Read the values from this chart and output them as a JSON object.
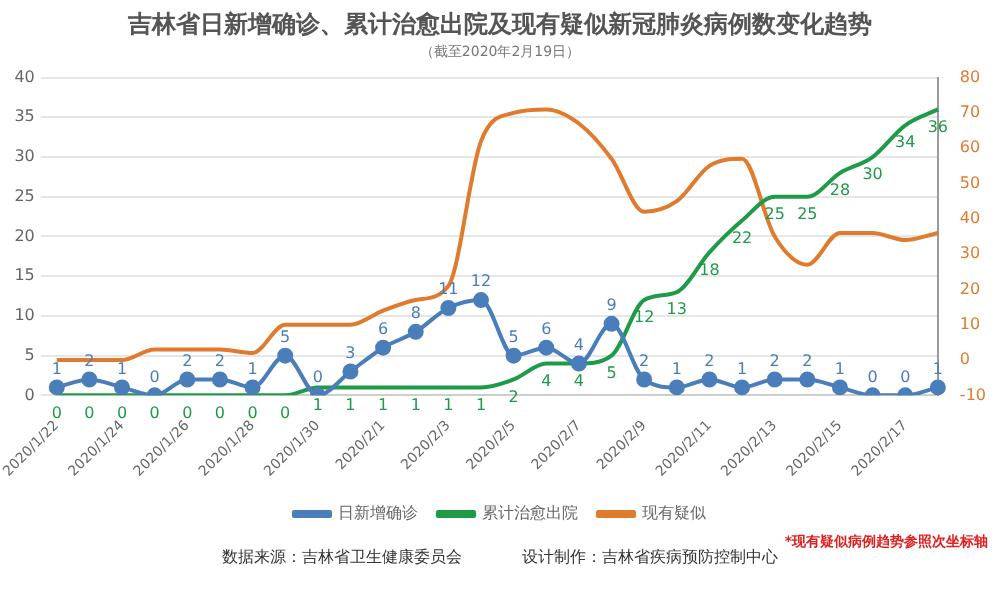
{
  "chart_data": {
    "type": "line",
    "title": "吉林省日新增确诊、累计治愈出院及现有疑似新冠肺炎病例数变化趋势",
    "subtitle": "（截至2020年2月19日）",
    "categories": [
      "2020/1/22",
      null,
      "2020/1/24",
      null,
      "2020/1/26",
      null,
      "2020/1/28",
      null,
      "2020/1/30",
      null,
      "2020/2/1",
      null,
      "2020/2/3",
      null,
      "2020/2/5",
      null,
      "2020/2/7",
      null,
      "2020/2/9",
      null,
      "2020/2/11",
      null,
      "2020/2/13",
      null,
      "2020/2/15",
      null,
      "2020/2/17",
      null
    ],
    "series": [
      {
        "name": "日新增确诊",
        "color": "#4a7ebb",
        "marker": "circle",
        "values": [
          1,
          2,
          1,
          0,
          2,
          2,
          1,
          5,
          0,
          3,
          6,
          8,
          11,
          12,
          5,
          6,
          4,
          9,
          2,
          1,
          2,
          1,
          2,
          2,
          1,
          0,
          0,
          1
        ],
        "value_labels": [
          "1",
          "2",
          "1",
          "0",
          "2",
          "2",
          "1",
          "5",
          "0",
          "3",
          "6",
          "8",
          "11",
          "12",
          "5",
          "6",
          "4",
          "9",
          "2",
          "1",
          "2",
          "1",
          "2",
          "2",
          "1",
          "0",
          "0",
          "1"
        ]
      },
      {
        "name": "累计治愈出院",
        "color": "#1e9a48",
        "marker": "none",
        "values": [
          0,
          0,
          0,
          0,
          0,
          0,
          0,
          0,
          1,
          1,
          1,
          1,
          1,
          1,
          2,
          4,
          4,
          5,
          12,
          13,
          18,
          22,
          25,
          25,
          28,
          30,
          34,
          36
        ],
        "value_labels": [
          "0",
          "0",
          "0",
          "0",
          "0",
          "0",
          "0",
          "0",
          "1",
          "1",
          "1",
          "1",
          "1",
          "1",
          "2",
          "4",
          "4",
          "5",
          "12",
          "13",
          "18",
          "22",
          "25",
          "25",
          "28",
          "30",
          "34",
          "36"
        ]
      },
      {
        "name": "现有疑似",
        "color": "#e07b2e",
        "marker": "none",
        "axis": "y2",
        "values": [
          0,
          0,
          0,
          3,
          3,
          3,
          2,
          10,
          10,
          10,
          14,
          17,
          21,
          62,
          70,
          71,
          67,
          57,
          42,
          45,
          55,
          57,
          35,
          27,
          36,
          36,
          34,
          36
        ]
      }
    ],
    "ylim": [
      0,
      40
    ],
    "yticks": [
      0,
      5,
      10,
      15,
      20,
      25,
      30,
      35,
      40
    ],
    "y2lim": [
      -10,
      80
    ],
    "y2ticks": [
      -10,
      0,
      10,
      20,
      30,
      40,
      50,
      60,
      70,
      80
    ],
    "grid": "y",
    "legend": "bottom",
    "annotations": [
      "*现有疑似病例趋势参照次坐标轴",
      "数据来源：吉林省卫生健康委员会",
      "设计制作：吉林省疾病预防控制中心"
    ]
  }
}
